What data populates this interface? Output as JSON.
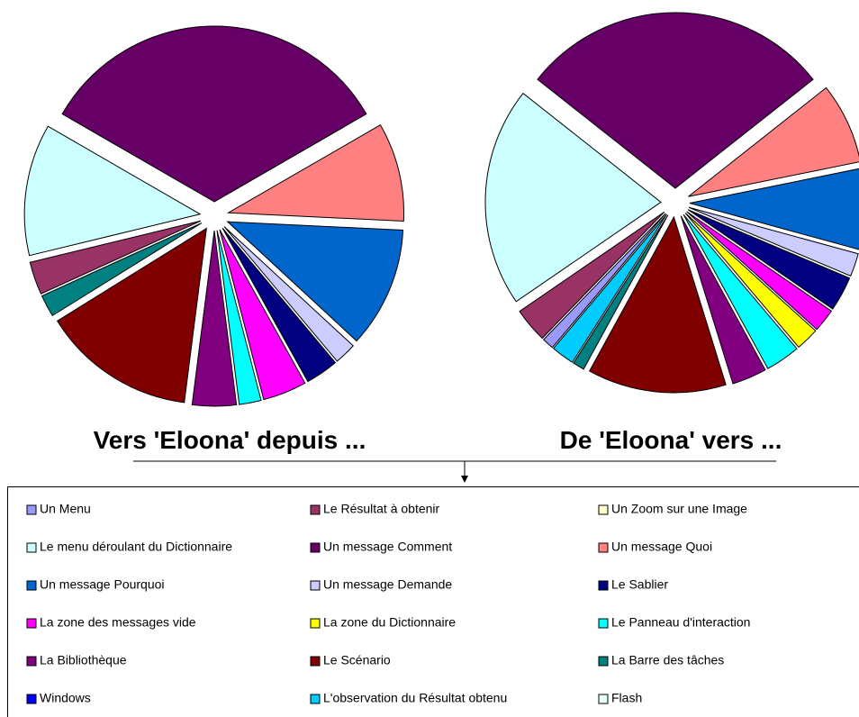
{
  "legend": [
    {
      "name": "Un Menu",
      "color": "#9999ff"
    },
    {
      "name": "Le Résultat à obtenir",
      "color": "#993366"
    },
    {
      "name": "Un Zoom sur une Image",
      "color": "#ffffcc"
    },
    {
      "name": "Le menu déroulant du Dictionnaire",
      "color": "#ccffff"
    },
    {
      "name": "Un message Comment",
      "color": "#660066"
    },
    {
      "name": "Un message Quoi",
      "color": "#ff8080"
    },
    {
      "name": "Un message Pourquoi",
      "color": "#0066cc"
    },
    {
      "name": "Un message Demande",
      "color": "#ccccff"
    },
    {
      "name": "Le Sablier",
      "color": "#000080"
    },
    {
      "name": "La zone des messages vide",
      "color": "#ff00ff"
    },
    {
      "name": "La zone du Dictionnaire",
      "color": "#ffff00"
    },
    {
      "name": "Le Panneau d'interaction",
      "color": "#00ffff"
    },
    {
      "name": "La Bibliothèque",
      "color": "#800080"
    },
    {
      "name": "Le Scénario",
      "color": "#800000"
    },
    {
      "name": "La Barre des tâches",
      "color": "#008080"
    },
    {
      "name": "Windows",
      "color": "#0000ff"
    },
    {
      "name": "L'observation du Résultat obtenu",
      "color": "#00ccff"
    },
    {
      "name": "Flash",
      "color": "#e6ffff"
    }
  ],
  "chart_data": [
    {
      "type": "pie",
      "title": "Vers 'Eloona' depuis ...",
      "values": [
        0,
        3,
        0,
        12,
        33,
        9,
        11,
        2,
        3,
        4,
        0,
        2,
        4,
        14,
        2,
        0,
        0,
        0
      ]
    },
    {
      "type": "pie",
      "title": "De 'Eloona' vers ...",
      "values": [
        1,
        3,
        0,
        19,
        27,
        7,
        7,
        2,
        3,
        2,
        2,
        3,
        3,
        12,
        1,
        0,
        2,
        0
      ]
    }
  ]
}
